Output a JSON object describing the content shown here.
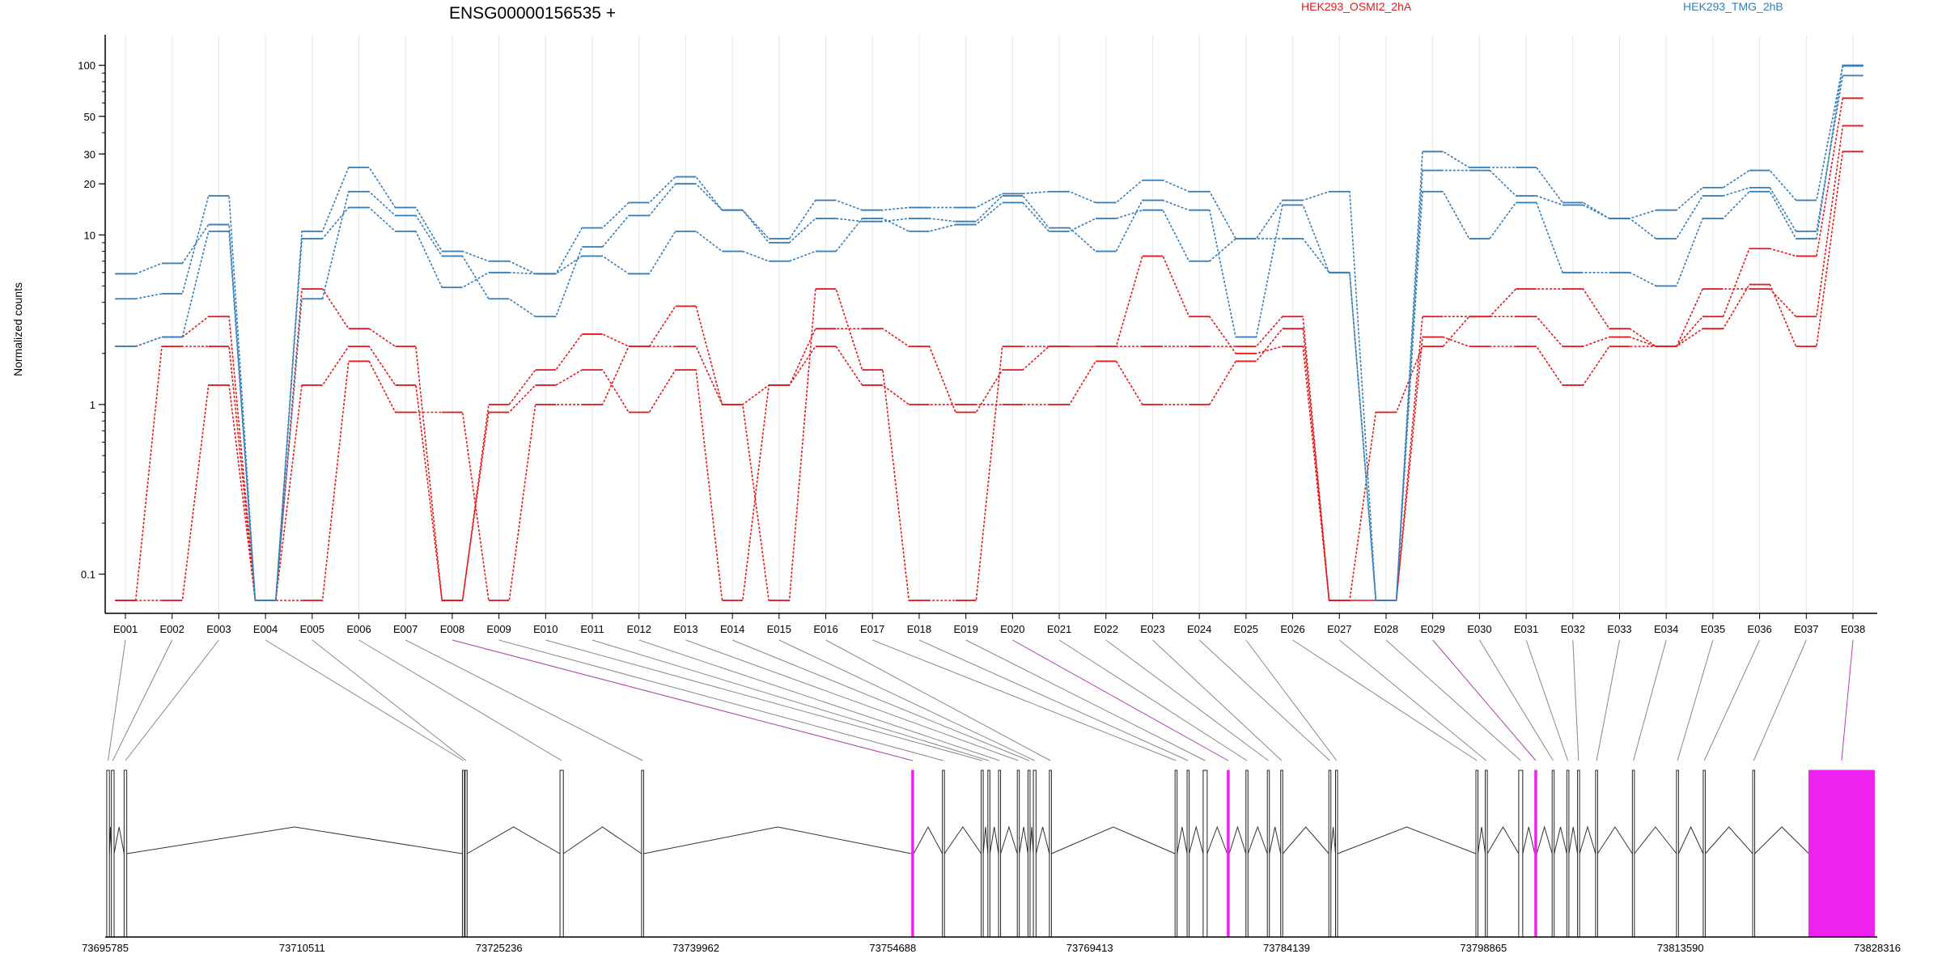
{
  "chart_data": {
    "type": "line",
    "title": "ENSG00000156535 +",
    "ylabel": "Normalized counts",
    "y_scale": "log",
    "ylim": [
      0.07,
      110
    ],
    "y_ticks": [
      0.1,
      1,
      10,
      20,
      30,
      50,
      100
    ],
    "y_tick_labels": [
      "0.1",
      "1",
      "10",
      "20",
      "30",
      "50",
      "100"
    ],
    "grid": "vertical",
    "legend_position": "top",
    "categories": [
      "E001",
      "E002",
      "E003",
      "E004",
      "E005",
      "E006",
      "E007",
      "E008",
      "E009",
      "E010",
      "E011",
      "E012",
      "E013",
      "E014",
      "E015",
      "E016",
      "E017",
      "E018",
      "E019",
      "E020",
      "E021",
      "E022",
      "E023",
      "E024",
      "E025",
      "E026",
      "E027",
      "E028",
      "E029",
      "E030",
      "E031",
      "E032",
      "E033",
      "E034",
      "E035",
      "E036",
      "E037",
      "E038"
    ],
    "special_exons": [
      "E008",
      "E020",
      "E029",
      "E038"
    ],
    "colors": {
      "HEK293_OSMI2_2hA": "#e41a1c",
      "HEK293_TMG_2hB": "#377eb8",
      "special_exon": "#ee22ee"
    },
    "series": [
      {
        "name": "HEK293_OSMI2_2hA",
        "group": "HEK293_OSMI2_2hA",
        "values": [
          2.2,
          2.5,
          3.3,
          0.07,
          4.8,
          2.8,
          2.2,
          0.07,
          1.0,
          1.6,
          2.6,
          2.2,
          3.8,
          1.0,
          1.3,
          2.8,
          2.8,
          2.2,
          0.9,
          1.6,
          2.2,
          2.2,
          7.5,
          3.3,
          2.0,
          2.2,
          0.07,
          0.9,
          2.2,
          3.3,
          3.3,
          2.2,
          2.5,
          2.2,
          3.3,
          8.3,
          7.5,
          64
        ]
      },
      {
        "name": "HEK293_OSMI2_2hA",
        "group": "HEK293_OSMI2_2hA",
        "values": [
          0.07,
          2.2,
          2.2,
          0.07,
          1.3,
          2.2,
          1.3,
          0.07,
          0.9,
          1.3,
          1.6,
          0.9,
          1.6,
          0.07,
          1.3,
          2.2,
          1.3,
          1.0,
          1.0,
          1.0,
          1.0,
          1.8,
          1.0,
          1.0,
          1.8,
          2.8,
          0.07,
          0.07,
          3.3,
          3.3,
          4.8,
          4.8,
          2.8,
          2.2,
          4.8,
          4.8,
          3.3,
          44
        ]
      },
      {
        "name": "HEK293_OSMI2_2hA",
        "group": "HEK293_OSMI2_2hA",
        "values": [
          0.07,
          0.07,
          1.3,
          0.07,
          0.07,
          1.8,
          0.9,
          0.9,
          0.07,
          1.0,
          1.0,
          2.2,
          2.2,
          1.0,
          0.07,
          4.8,
          1.6,
          0.07,
          0.07,
          2.2,
          2.2,
          2.2,
          2.2,
          2.2,
          2.2,
          3.3,
          0.07,
          0.07,
          2.5,
          2.2,
          2.2,
          1.3,
          2.2,
          2.2,
          2.8,
          5.1,
          2.2,
          31
        ]
      },
      {
        "name": "HEK293_TMG_2hB",
        "group": "HEK293_TMG_2hB",
        "values": [
          5.9,
          6.8,
          11.5,
          0.07,
          10.5,
          25,
          14.5,
          8.0,
          7.0,
          5.9,
          11,
          15.5,
          22,
          14,
          9.5,
          16,
          14,
          14.5,
          14.5,
          17.5,
          18,
          15.5,
          21,
          18,
          9.5,
          16,
          18,
          0.07,
          31,
          25,
          25,
          15.5,
          12.5,
          14,
          19,
          24,
          16,
          99
        ]
      },
      {
        "name": "HEK293_TMG_2hB",
        "group": "HEK293_TMG_2hB",
        "values": [
          4.2,
          4.5,
          17,
          0.07,
          4.2,
          18,
          13,
          7.5,
          4.2,
          3.3,
          8.5,
          13,
          20,
          14,
          9.0,
          12.5,
          12,
          12.5,
          12,
          17,
          11,
          8.0,
          16,
          14,
          2.5,
          15,
          6.0,
          0.07,
          24,
          24,
          17,
          15,
          12.5,
          9.5,
          17,
          19,
          10.5,
          87
        ]
      },
      {
        "name": "HEK293_TMG_2hB",
        "group": "HEK293_TMG_2hB",
        "values": [
          2.2,
          2.5,
          10.5,
          0.07,
          9.5,
          14.5,
          10.5,
          4.9,
          6.0,
          5.9,
          7.5,
          5.9,
          10.5,
          8.0,
          7.0,
          8.0,
          12.5,
          10.5,
          11.5,
          15.5,
          10.5,
          12.5,
          14,
          7.0,
          9.5,
          9.5,
          6.0,
          0.07,
          18,
          9.5,
          15.5,
          6.0,
          6.0,
          5.0,
          12.5,
          18,
          9.5,
          100
        ]
      }
    ],
    "genome_axis": {
      "tick_labels": [
        "73695785",
        "73710511",
        "73725236",
        "73739962",
        "73754688",
        "73769413",
        "73784139",
        "73798865",
        "73813590",
        "73828316"
      ],
      "range": [
        73695785,
        73828316
      ]
    },
    "exon_coords": [
      [
        73695900,
        73696100
      ],
      [
        73696250,
        73696450
      ],
      [
        73697200,
        73697400
      ],
      [
        73722500,
        73722650
      ],
      [
        73722700,
        73722850
      ],
      [
        73729800,
        73730050
      ],
      [
        73735900,
        73736050
      ],
      [
        73756100,
        73756250
      ],
      [
        73758400,
        73758550
      ],
      [
        73761300,
        73761450
      ],
      [
        73761800,
        73761950
      ],
      [
        73762600,
        73762750
      ],
      [
        73764000,
        73764150
      ],
      [
        73764800,
        73764950
      ],
      [
        73765200,
        73765400
      ],
      [
        73766400,
        73766550
      ],
      [
        73775800,
        73775950
      ],
      [
        73776700,
        73776850
      ],
      [
        73777900,
        73778200
      ],
      [
        73779700,
        73779850
      ],
      [
        73781100,
        73781250
      ],
      [
        73782700,
        73782850
      ],
      [
        73783700,
        73783850
      ],
      [
        73787300,
        73787450
      ],
      [
        73787800,
        73787950
      ],
      [
        73798300,
        73798450
      ],
      [
        73799000,
        73799150
      ],
      [
        73801500,
        73801800
      ],
      [
        73802700,
        73802850
      ],
      [
        73804000,
        73804150
      ],
      [
        73805100,
        73805250
      ],
      [
        73805900,
        73806050
      ],
      [
        73807250,
        73807400
      ],
      [
        73810000,
        73810150
      ],
      [
        73813300,
        73813450
      ],
      [
        73815300,
        73815450
      ],
      [
        73819000,
        73819150
      ],
      [
        73823200,
        73828100
      ]
    ]
  }
}
